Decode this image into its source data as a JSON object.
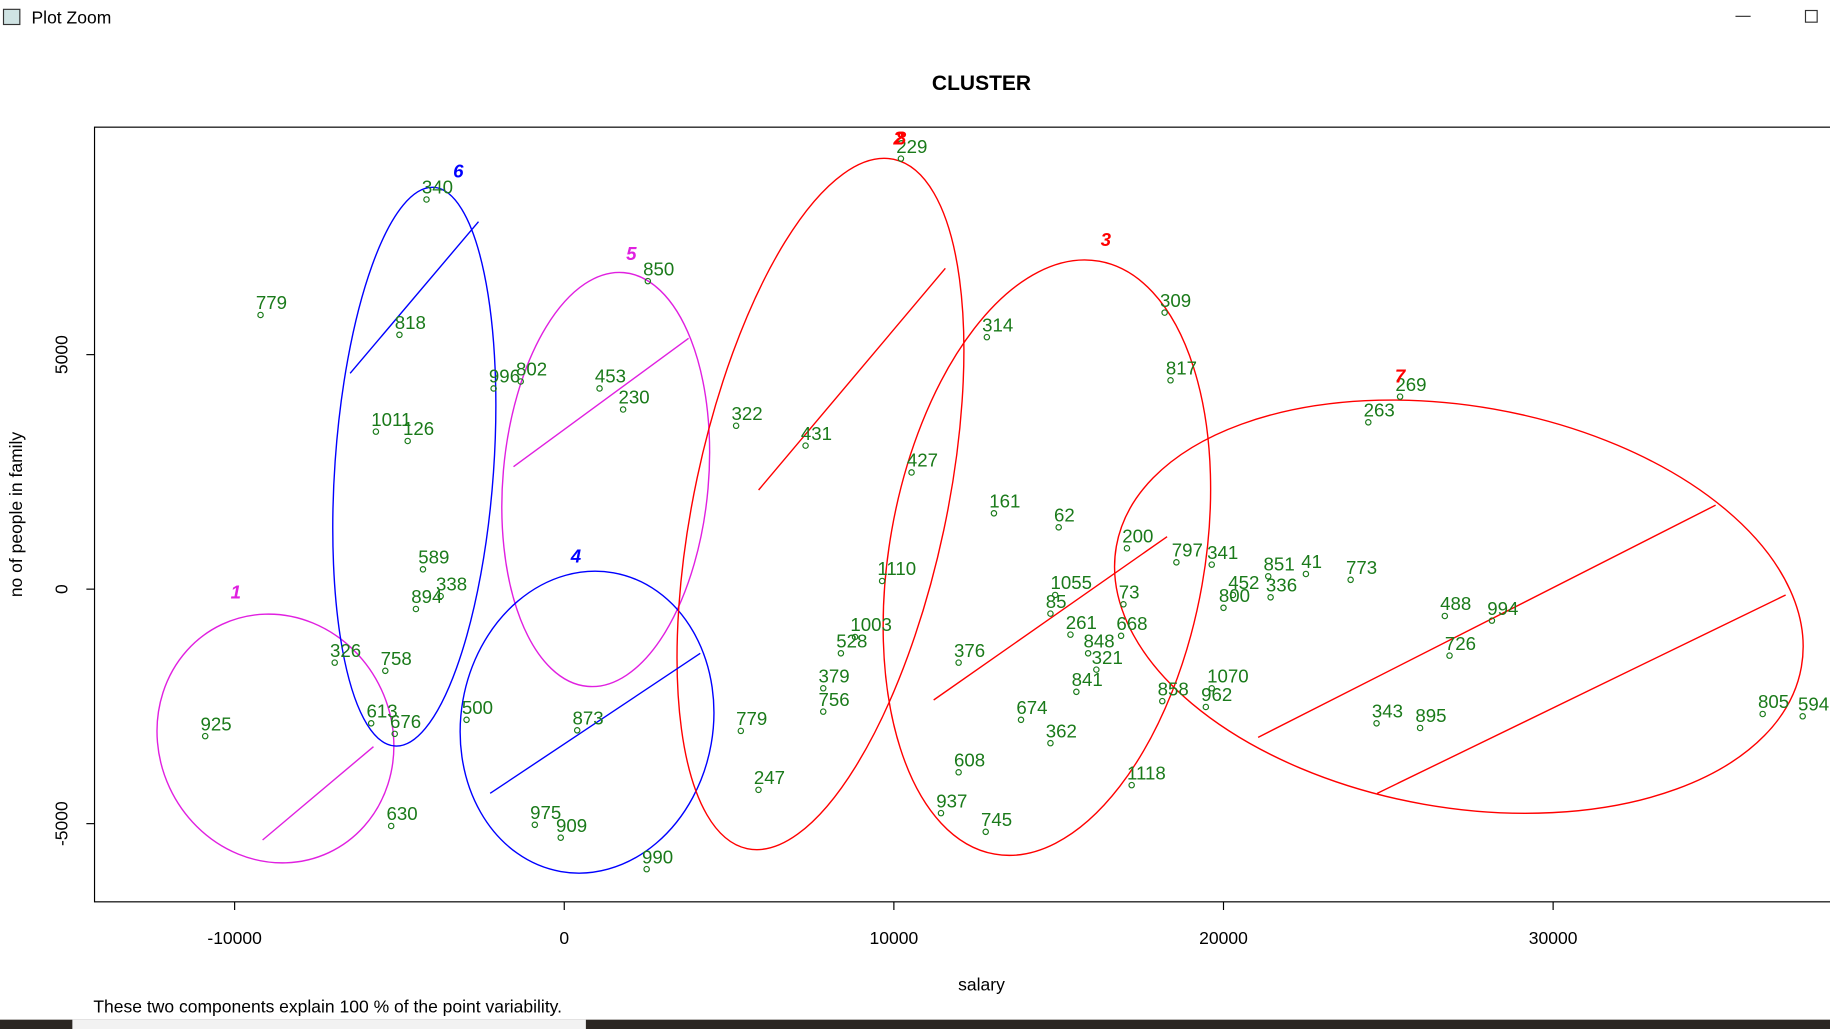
{
  "window": {
    "title": "Plot Zoom"
  },
  "chart_data": {
    "type": "scatter",
    "title": "CLUSTER",
    "x_label": "salary",
    "y_label": "no of people in family",
    "footnote": "These two components explain 100 % of the point variability.",
    "xlim": [
      -14250,
      38860
    ],
    "ylim": [
      -6667,
      9850
    ],
    "xticks": [
      -10000,
      0,
      10000,
      20000,
      30000
    ],
    "yticks": [
      -5000,
      0,
      5000
    ],
    "point_color": "#1a7a1a",
    "points": {
      "labels": [
        "229",
        "340",
        "850",
        "309",
        "314",
        "817",
        "263",
        "269",
        "802",
        "996",
        "431",
        "427",
        "161",
        "62",
        "200",
        "797",
        "341",
        "851",
        "41",
        "773",
        "336",
        "452",
        "800",
        "994",
        "488",
        "726",
        "805",
        "594",
        "343",
        "895",
        "1070",
        "962",
        "858",
        "1118",
        "73",
        "1055",
        "85",
        "261",
        "668",
        "848",
        "321",
        "841",
        "362",
        "608",
        "937",
        "745",
        "674",
        "376",
        "1110",
        "1003",
        "528",
        "379",
        "756",
        "779",
        "247",
        "630",
        "975",
        "909",
        "990",
        "500",
        "873",
        "894",
        "338",
        "589",
        "758",
        "326",
        "676",
        "613",
        "779",
        "925",
        "1011",
        "126",
        "818",
        "453",
        "230",
        "322"
      ],
      "x": [
        10214,
        -4179,
        2536,
        18214,
        12821,
        18393,
        24393,
        25357,
        -1321,
        -2143,
        7321,
        10536,
        13036,
        15000,
        17071,
        18571,
        19643,
        21357,
        22500,
        23857,
        21429,
        20286,
        20000,
        28143,
        26714,
        26857,
        36357,
        37571,
        24643,
        25964,
        19643,
        19464,
        18143,
        17214,
        16964,
        14893,
        14750,
        15357,
        16893,
        15893,
        16143,
        15536,
        14750,
        11964,
        11429,
        12786,
        13857,
        11964,
        9643,
        8821,
        8393,
        7857,
        7857,
        5357,
        5893,
        -5250,
        -893,
        -107,
        2500,
        -2964,
        393,
        -4500,
        -3750,
        -4286,
        -5429,
        -6964,
        -5143,
        -5857,
        -9214,
        -10893,
        -5714,
        -4750,
        -5000,
        1071,
        1786,
        5214
      ],
      "y": [
        9179,
        8308,
        6567,
        5896,
        5373,
        4453,
        3557,
        4104,
        4428,
        4279,
        3060,
        2488,
        1617,
        1318,
        871,
        572,
        522,
        274,
        323,
        199,
        -174,
        -124,
        -398,
        -672,
        -572,
        -1418,
        -2662,
        -2711,
        -2861,
        -2960,
        -2114,
        -2512,
        -2388,
        -4179,
        -323,
        -124,
        -522,
        -970,
        -995,
        -1368,
        -1716,
        -2189,
        -3284,
        -3905,
        -4776,
        -5174,
        -2786,
        -1567,
        174,
        -1020,
        -1368,
        -2114,
        -2612,
        -3022,
        -4279,
        -5050,
        -5025,
        -5299,
        -5970,
        -2786,
        -3010,
        -423,
        -149,
        423,
        -1741,
        -1567,
        -3085,
        -2861,
        5846,
        -3134,
        3358,
        3159,
        5423,
        4279,
        3831,
        3483
      ]
    },
    "clusters": {
      "labels": [
        "1",
        "2",
        "3",
        "4",
        "5",
        "6",
        "7",
        "8"
      ],
      "colors": [
        "#e020e0",
        "#ff0000",
        "#ff0000",
        "#0000ff",
        "#e020e0",
        "#0000ff",
        "#ff0000",
        "#ff0000"
      ],
      "x": [
        -9964,
        10143,
        16429,
        357,
        2036,
        -3214,
        25357,
        10214
      ],
      "y": [
        -199,
        9478,
        7313,
        572,
        7015,
        8781,
        4403,
        9478
      ]
    }
  }
}
